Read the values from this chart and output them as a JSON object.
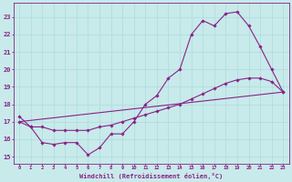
{
  "xlabel": "Windchill (Refroidissement éolien,°C)",
  "xlim": [
    -0.5,
    23.5
  ],
  "ylim": [
    14.6,
    23.8
  ],
  "yticks": [
    15,
    16,
    17,
    18,
    19,
    20,
    21,
    22,
    23
  ],
  "xticks": [
    0,
    1,
    2,
    3,
    4,
    5,
    6,
    7,
    8,
    9,
    10,
    11,
    12,
    13,
    14,
    15,
    16,
    17,
    18,
    19,
    20,
    21,
    22,
    23
  ],
  "line_color": "#882288",
  "bg_color": "#c8eaea",
  "grid_color": "#aadddd",
  "line1_x": [
    0,
    1,
    2,
    3,
    4,
    5,
    6,
    7,
    8,
    9,
    10,
    11,
    12,
    13,
    14,
    15,
    16,
    17,
    18,
    19,
    20,
    21,
    22,
    23
  ],
  "line1_y": [
    17.3,
    16.7,
    15.8,
    15.7,
    15.8,
    15.8,
    15.1,
    15.5,
    16.3,
    16.3,
    17.0,
    18.0,
    18.5,
    19.5,
    20.0,
    22.0,
    22.8,
    22.5,
    23.2,
    23.3,
    22.5,
    21.3,
    20.0,
    18.7
  ],
  "line2_x": [
    0,
    23
  ],
  "line2_y": [
    17.0,
    18.7
  ],
  "line3_x": [
    0,
    1,
    2,
    3,
    4,
    5,
    6,
    7,
    8,
    9,
    10,
    11,
    12,
    13,
    14,
    15,
    16,
    17,
    18,
    19,
    20,
    21,
    22,
    23
  ],
  "line3_y": [
    17.0,
    16.7,
    16.7,
    16.5,
    16.5,
    16.5,
    16.5,
    16.7,
    16.8,
    17.0,
    17.2,
    17.4,
    17.6,
    17.8,
    18.0,
    18.3,
    18.6,
    18.9,
    19.2,
    19.4,
    19.5,
    19.5,
    19.3,
    18.7
  ]
}
